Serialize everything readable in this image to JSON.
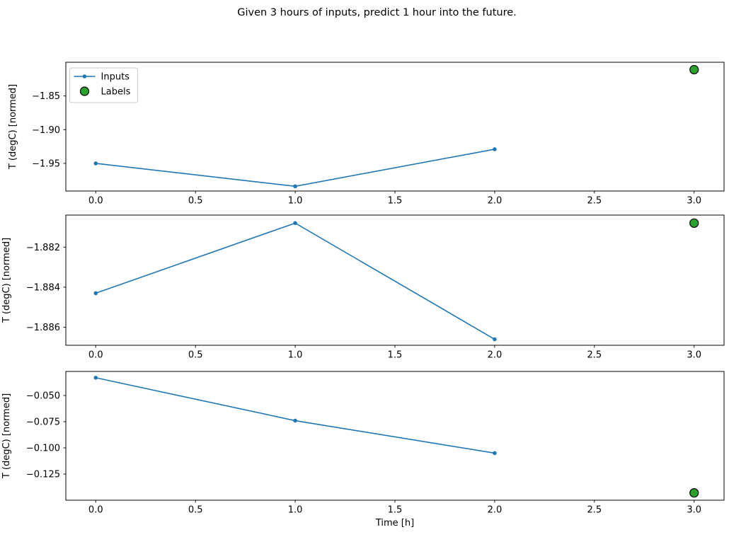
{
  "figure": {
    "title": "Given 3 hours of inputs, predict 1 hour into the future.",
    "background": "#ffffff",
    "text_color": "#000000"
  },
  "legend": {
    "position": "upper-left",
    "entries": [
      {
        "label": "Inputs",
        "type": "line-marker",
        "color": "#1f77b4"
      },
      {
        "label": "Labels",
        "type": "marker",
        "color": "#2ca02c",
        "edge_color": "#000000"
      }
    ]
  },
  "chart_data": [
    {
      "type": "line",
      "title": "",
      "xlabel": "",
      "ylabel": "T (degC) [normed]",
      "xlim": [
        -0.15,
        3.15
      ],
      "ylim": [
        -1.991,
        -1.8
      ],
      "grid": false,
      "xticks": [
        0.0,
        0.5,
        1.0,
        1.5,
        2.0,
        2.5,
        3.0
      ],
      "xticklabels": [
        "0.0",
        "0.5",
        "1.0",
        "1.5",
        "2.0",
        "2.5",
        "3.0"
      ],
      "yticks": [
        -1.85,
        -1.9,
        -1.95
      ],
      "yticklabels": [
        "−1.85",
        "−1.90",
        "−1.95"
      ],
      "legend": true,
      "series": [
        {
          "name": "Inputs",
          "style": "line+marker",
          "color": "#1f77b4",
          "x": [
            0,
            1,
            2
          ],
          "y": [
            -1.95,
            -1.984,
            -1.929
          ]
        },
        {
          "name": "Labels",
          "style": "marker",
          "color": "#2ca02c",
          "edge_color": "#000000",
          "x": [
            3
          ],
          "y": [
            -1.811
          ]
        }
      ]
    },
    {
      "type": "line",
      "title": "",
      "xlabel": "",
      "ylabel": "T (degC) [normed]",
      "xlim": [
        -0.15,
        3.15
      ],
      "ylim": [
        -1.8869,
        -1.8804
      ],
      "grid": false,
      "xticks": [
        0.0,
        0.5,
        1.0,
        1.5,
        2.0,
        2.5,
        3.0
      ],
      "xticklabels": [
        "0.0",
        "0.5",
        "1.0",
        "1.5",
        "2.0",
        "2.5",
        "3.0"
      ],
      "yticks": [
        -1.882,
        -1.884,
        -1.886
      ],
      "yticklabels": [
        "−1.882",
        "−1.884",
        "−1.886"
      ],
      "legend": false,
      "series": [
        {
          "name": "Inputs",
          "style": "line+marker",
          "color": "#1f77b4",
          "x": [
            0,
            1,
            2
          ],
          "y": [
            -1.8843,
            -1.8808,
            -1.8866
          ]
        },
        {
          "name": "Labels",
          "style": "marker",
          "color": "#2ca02c",
          "edge_color": "#000000",
          "x": [
            3
          ],
          "y": [
            -1.8808
          ]
        }
      ]
    },
    {
      "type": "line",
      "title": "",
      "xlabel": "Time [h]",
      "ylabel": "T (degC) [normed]",
      "xlim": [
        -0.15,
        3.15
      ],
      "ylim": [
        -0.15,
        -0.027
      ],
      "grid": false,
      "xticks": [
        0.0,
        0.5,
        1.0,
        1.5,
        2.0,
        2.5,
        3.0
      ],
      "xticklabels": [
        "0.0",
        "0.5",
        "1.0",
        "1.5",
        "2.0",
        "2.5",
        "3.0"
      ],
      "yticks": [
        -0.05,
        -0.075,
        -0.1,
        -0.125
      ],
      "yticklabels": [
        "−0.050",
        "−0.075",
        "−0.100",
        "−0.125"
      ],
      "legend": false,
      "series": [
        {
          "name": "Inputs",
          "style": "line+marker",
          "color": "#1f77b4",
          "x": [
            0,
            1,
            2
          ],
          "y": [
            -0.033,
            -0.074,
            -0.105
          ]
        },
        {
          "name": "Labels",
          "style": "marker",
          "color": "#2ca02c",
          "edge_color": "#000000",
          "x": [
            3
          ],
          "y": [
            -0.143
          ]
        }
      ]
    }
  ]
}
